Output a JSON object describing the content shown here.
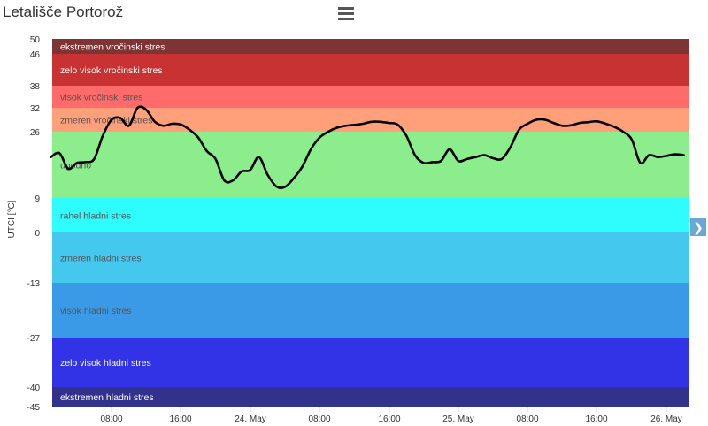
{
  "title": "Letališče Portorož",
  "icons": {
    "menu": "hamburger-menu-icon",
    "next": "chevron-right-icon"
  },
  "chart_data": {
    "type": "line",
    "title": "Letališče Portorož",
    "ylabel": "UTCI [°C]",
    "xlabel": "",
    "ylim": [
      -45,
      50
    ],
    "y_ticks": [
      50,
      46,
      38,
      32,
      26,
      9,
      0,
      -13,
      -27,
      -40,
      -45
    ],
    "x_ticks": [
      {
        "label": "08:00",
        "t": 8
      },
      {
        "label": "16:00",
        "t": 16
      },
      {
        "label": "24. May",
        "t": 24
      },
      {
        "label": "08:00",
        "t": 32
      },
      {
        "label": "16:00",
        "t": 40
      },
      {
        "label": "25. May",
        "t": 48
      },
      {
        "label": "08:00",
        "t": 56
      },
      {
        "label": "16:00",
        "t": 64
      },
      {
        "label": "26. May",
        "t": 72
      }
    ],
    "x_range_hours": [
      0.5,
      73
    ],
    "bands": [
      {
        "from": 46,
        "to": 50,
        "label": "ekstremen vročinski stres",
        "color": "#7e3434",
        "text_color": "#ffffff"
      },
      {
        "from": 38,
        "to": 46,
        "label": "zelo visok vročinski stres",
        "color": "#c83232",
        "text_color": "#ffffff"
      },
      {
        "from": 32,
        "to": 38,
        "label": "visok vročinski stres",
        "color": "#ff6a6a",
        "text_color": "#555555"
      },
      {
        "from": 26,
        "to": 32,
        "label": "zmeren vročinski stres",
        "color": "#ffa07a",
        "text_color": "#555555"
      },
      {
        "from": 9,
        "to": 26,
        "label": "ugodno",
        "color": "#8ced8c",
        "text_color": "#555555"
      },
      {
        "from": 0,
        "to": 9,
        "label": "rahel hladni stres",
        "color": "#2ffcfc",
        "text_color": "#555555"
      },
      {
        "from": -13,
        "to": 0,
        "label": "zmeren hladni stres",
        "color": "#44c8ee",
        "text_color": "#555555"
      },
      {
        "from": -27,
        "to": -13,
        "label": "visok hladni stres",
        "color": "#3a9ae8",
        "text_color": "#555555"
      },
      {
        "from": -40,
        "to": -27,
        "label": "zelo visok hladni stres",
        "color": "#3232e6",
        "text_color": "#ffffff"
      },
      {
        "from": -45,
        "to": -40,
        "label": "ekstremen hladni stres",
        "color": "#32328c",
        "text_color": "#ffffff"
      }
    ],
    "series": [
      {
        "color": "#000000",
        "points": [
          [
            1,
            19.5
          ],
          [
            2,
            20.5
          ],
          [
            3,
            16.5
          ],
          [
            4,
            18
          ],
          [
            5,
            18.2
          ],
          [
            6,
            19
          ],
          [
            7,
            25
          ],
          [
            8,
            29
          ],
          [
            9,
            29.5
          ],
          [
            10,
            27.5
          ],
          [
            11,
            32
          ],
          [
            12,
            31.5
          ],
          [
            13,
            28.5
          ],
          [
            14,
            27.5
          ],
          [
            15,
            28
          ],
          [
            16,
            27.8
          ],
          [
            17,
            26.5
          ],
          [
            18,
            24.5
          ],
          [
            19,
            21
          ],
          [
            20,
            19
          ],
          [
            21,
            13.5
          ],
          [
            22,
            13.5
          ],
          [
            23,
            15.8
          ],
          [
            24,
            16.2
          ],
          [
            25,
            19.5
          ],
          [
            26,
            15
          ],
          [
            27,
            12
          ],
          [
            28,
            11.8
          ],
          [
            29,
            14
          ],
          [
            30,
            17
          ],
          [
            31,
            21.5
          ],
          [
            32,
            24.5
          ],
          [
            33,
            26
          ],
          [
            34,
            27
          ],
          [
            35,
            27.5
          ],
          [
            36,
            27.7
          ],
          [
            37,
            28
          ],
          [
            38,
            28.5
          ],
          [
            39,
            28.5
          ],
          [
            40,
            28.2
          ],
          [
            41,
            27.8
          ],
          [
            42,
            25
          ],
          [
            43,
            20
          ],
          [
            44,
            18
          ],
          [
            45,
            18.2
          ],
          [
            46,
            18.5
          ],
          [
            47,
            21.5
          ],
          [
            48,
            18.5
          ],
          [
            49,
            19
          ],
          [
            50,
            19.5
          ],
          [
            51,
            20
          ],
          [
            52,
            19.2
          ],
          [
            53,
            19
          ],
          [
            54,
            22
          ],
          [
            55,
            26.5
          ],
          [
            56,
            28
          ],
          [
            57,
            29
          ],
          [
            58,
            29
          ],
          [
            59,
            28.2
          ],
          [
            60,
            27.5
          ],
          [
            61,
            27.6
          ],
          [
            62,
            28.2
          ],
          [
            63,
            28.4
          ],
          [
            64,
            28.6
          ],
          [
            65,
            28
          ],
          [
            66,
            27.2
          ],
          [
            67,
            26
          ],
          [
            68,
            24
          ],
          [
            69,
            18
          ],
          [
            70,
            20
          ],
          [
            71,
            19.5
          ],
          [
            72,
            19.8
          ],
          [
            73,
            20.2
          ],
          [
            74,
            20
          ]
        ]
      }
    ]
  }
}
